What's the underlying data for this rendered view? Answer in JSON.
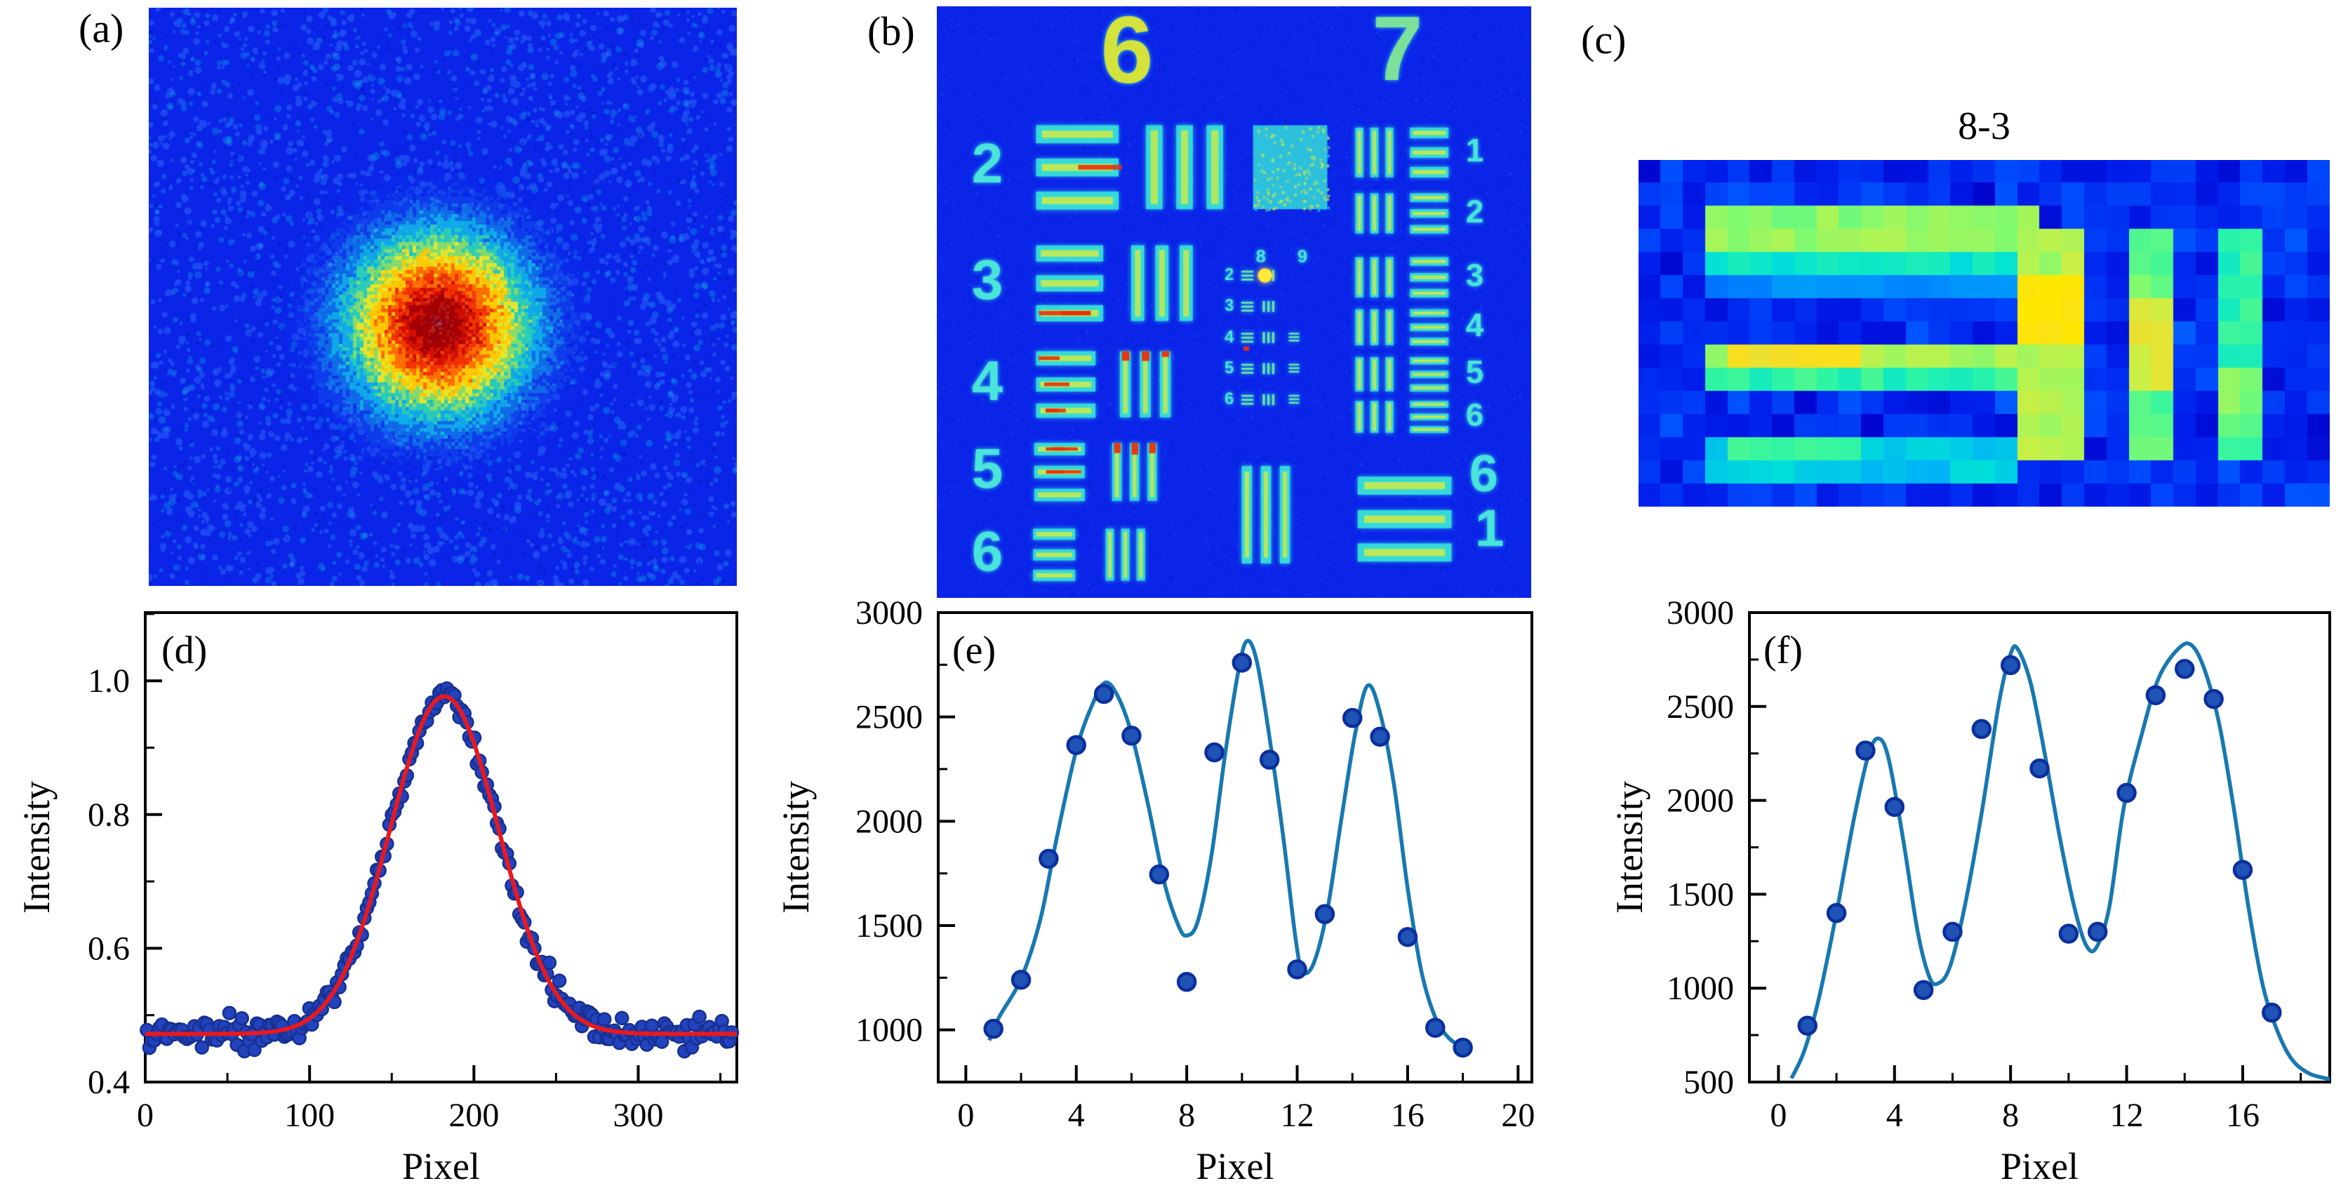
{
  "panels": {
    "a": {
      "label": "(a)"
    },
    "b": {
      "label": "(b)"
    },
    "c": {
      "label": "(c)",
      "title": "8-3"
    },
    "d": {
      "label": "(d)"
    },
    "e": {
      "label": "(e)"
    },
    "f": {
      "label": "(f)"
    }
  },
  "usaf_target": {
    "top_numbers": [
      "6",
      "7"
    ],
    "left_group_labels": [
      "2",
      "3",
      "4",
      "5",
      "6"
    ],
    "right_element_labels": [
      "1",
      "2",
      "3",
      "4",
      "5",
      "6"
    ],
    "bottom_right_labels": [
      "6",
      "1"
    ],
    "mini_cluster_top_numbers": [
      "8",
      "9"
    ],
    "mini_cluster_side_numbers": [
      "2",
      "3",
      "4",
      "5",
      "6"
    ]
  },
  "colors": {
    "figure_background": "#ffffff",
    "heat_background": "#0a24e8",
    "speckle_light": "#1e4af2",
    "speckle_sky": "#0d84e8",
    "speckle_cyan": "#14c2ea",
    "speckle_dark": "#0313a8",
    "bar_edge_cyan": "#35dcd8",
    "bar_core_yellow": "#c8e94c",
    "bar_hot_red": "#e83010",
    "numeral_cyan": "#4ae4da",
    "numeral_yellow": "#d4e23c",
    "numeral_green": "#7ce09a",
    "scatter_fill_d": "#2342bd",
    "scatter_edge_d": "#16308f",
    "scatter_fill": "#1f53b5",
    "scatter_edge": "#0b2f9e",
    "fit_line_red": "#e8191e",
    "curve_blue": "#1878b0",
    "axis_color": "#000000"
  },
  "chart_data": [
    {
      "id": "d",
      "type": "scatter",
      "panel_label": "(d)",
      "title": "",
      "xlabel": "Pixel",
      "ylabel": "Intensity",
      "xlim": [
        0,
        360
      ],
      "ylim": [
        0.4,
        1.102
      ],
      "xticks": [
        0,
        100,
        200,
        300
      ],
      "yticks": [
        0.4,
        0.6,
        0.8,
        1.0
      ],
      "x_minor_step": 50,
      "y_minor_step": 0.1,
      "ytick_decimals": 1,
      "n_points": 235,
      "noise_sigma": 0.009,
      "fit": {
        "type": "gaussian",
        "baseline": 0.472,
        "amplitude": 0.505,
        "center": 182,
        "sigma": 33
      }
    },
    {
      "id": "e",
      "type": "scatter",
      "panel_label": "(e)",
      "title": "",
      "xlabel": "Pixel",
      "ylabel": "Intensity",
      "xlim": [
        -1,
        20.5
      ],
      "ylim": [
        750,
        3000
      ],
      "xticks": [
        0,
        4,
        8,
        12,
        16,
        20
      ],
      "yticks": [
        1000,
        1500,
        2000,
        2500,
        3000
      ],
      "x_minor_step": 2,
      "y_minor_step": 250,
      "ytick_decimals": 0,
      "points": [
        [
          1,
          1005
        ],
        [
          2,
          1240
        ],
        [
          3,
          1820
        ],
        [
          4,
          2365
        ],
        [
          5,
          2610
        ],
        [
          6,
          2410
        ],
        [
          7,
          1745
        ],
        [
          8,
          1230
        ],
        [
          9,
          2330
        ],
        [
          10,
          2760
        ],
        [
          11,
          2295
        ],
        [
          12,
          1290
        ],
        [
          13,
          1555
        ],
        [
          14,
          2495
        ],
        [
          15,
          2405
        ],
        [
          16,
          1445
        ],
        [
          17,
          1010
        ],
        [
          18,
          915
        ]
      ],
      "curve": [
        [
          0.85,
          950
        ],
        [
          1.2,
          1060
        ],
        [
          2,
          1245
        ],
        [
          2.7,
          1530
        ],
        [
          3.3,
          1925
        ],
        [
          4,
          2340
        ],
        [
          4.6,
          2565
        ],
        [
          5.05,
          2665
        ],
        [
          5.5,
          2600
        ],
        [
          6,
          2420
        ],
        [
          6.6,
          2080
        ],
        [
          7.2,
          1700
        ],
        [
          7.7,
          1500
        ],
        [
          8.0,
          1452
        ],
        [
          8.4,
          1520
        ],
        [
          8.9,
          1840
        ],
        [
          9.4,
          2330
        ],
        [
          9.9,
          2740
        ],
        [
          10.2,
          2865
        ],
        [
          10.55,
          2760
        ],
        [
          11.0,
          2400
        ],
        [
          11.5,
          1920
        ],
        [
          11.95,
          1430
        ],
        [
          12.2,
          1280
        ],
        [
          12.6,
          1320
        ],
        [
          13.1,
          1580
        ],
        [
          13.6,
          2010
        ],
        [
          14.1,
          2420
        ],
        [
          14.55,
          2650
        ],
        [
          15.0,
          2520
        ],
        [
          15.5,
          2180
        ],
        [
          16.0,
          1680
        ],
        [
          16.5,
          1280
        ],
        [
          17.0,
          1060
        ],
        [
          17.5,
          960
        ],
        [
          18.05,
          912
        ]
      ]
    },
    {
      "id": "f",
      "type": "scatter",
      "panel_label": "(f)",
      "title": "",
      "xlabel": "Pixel",
      "ylabel": "Intensity",
      "xlim": [
        -1,
        19
      ],
      "ylim": [
        500,
        3000
      ],
      "xticks": [
        0,
        4,
        8,
        12,
        16
      ],
      "yticks": [
        500,
        1000,
        1500,
        2000,
        2500,
        3000
      ],
      "x_minor_step": 2,
      "y_minor_step": 250,
      "ytick_decimals": 0,
      "points": [
        [
          1,
          800
        ],
        [
          2,
          1400
        ],
        [
          3,
          2265
        ],
        [
          4,
          1965
        ],
        [
          5,
          990
        ],
        [
          6,
          1300
        ],
        [
          7,
          2380
        ],
        [
          8,
          2720
        ],
        [
          9,
          2170
        ],
        [
          10,
          1290
        ],
        [
          11,
          1300
        ],
        [
          12,
          2040
        ],
        [
          13,
          2560
        ],
        [
          14,
          2700
        ],
        [
          15,
          2540
        ],
        [
          16,
          1630
        ],
        [
          17,
          870
        ]
      ],
      "curve": [
        [
          0.45,
          520
        ],
        [
          0.9,
          670
        ],
        [
          1.4,
          950
        ],
        [
          2.0,
          1400
        ],
        [
          2.6,
          1900
        ],
        [
          3.1,
          2240
        ],
        [
          3.45,
          2330
        ],
        [
          3.8,
          2220
        ],
        [
          4.3,
          1790
        ],
        [
          4.8,
          1300
        ],
        [
          5.2,
          1060
        ],
        [
          5.5,
          1025
        ],
        [
          5.9,
          1110
        ],
        [
          6.4,
          1420
        ],
        [
          7.0,
          1930
        ],
        [
          7.6,
          2520
        ],
        [
          8.0,
          2780
        ],
        [
          8.25,
          2805
        ],
        [
          8.7,
          2620
        ],
        [
          9.2,
          2230
        ],
        [
          9.7,
          1800
        ],
        [
          10.2,
          1430
        ],
        [
          10.6,
          1230
        ],
        [
          10.95,
          1215
        ],
        [
          11.4,
          1430
        ],
        [
          11.9,
          1960
        ],
        [
          12.5,
          2340
        ],
        [
          13.1,
          2650
        ],
        [
          13.8,
          2810
        ],
        [
          14.25,
          2825
        ],
        [
          14.7,
          2690
        ],
        [
          15.2,
          2400
        ],
        [
          15.7,
          1950
        ],
        [
          16.2,
          1430
        ],
        [
          16.7,
          1010
        ],
        [
          17.2,
          770
        ],
        [
          17.7,
          620
        ],
        [
          18.3,
          545
        ],
        [
          19.0,
          515
        ]
      ]
    },
    {
      "id": "c",
      "type": "heatmap",
      "title": "8-3",
      "cols": 31,
      "rows": 15,
      "background": 0.1,
      "bars": [
        {
          "c0": 3,
          "c1": 17,
          "r0": 2,
          "r1": 3,
          "v": 0.68
        },
        {
          "c0": 3,
          "c1": 17,
          "r0": 4,
          "r1": 4,
          "v": 0.5
        },
        {
          "c0": 3,
          "c1": 17,
          "r0": 5,
          "r1": 5,
          "v": 0.3
        },
        {
          "c0": 3,
          "c1": 16,
          "r0": 8,
          "r1": 8,
          "v": 0.7
        },
        {
          "c0": 4,
          "c1": 9,
          "r0": 8,
          "r1": 8,
          "v": 0.88
        },
        {
          "c0": 3,
          "c1": 16,
          "r0": 9,
          "r1": 9,
          "v": 0.55
        },
        {
          "c0": 3,
          "c1": 16,
          "r0": 12,
          "r1": 13,
          "v": 0.42
        },
        {
          "c0": 4,
          "c1": 9,
          "r0": 12,
          "r1": 12,
          "v": 0.55
        },
        {
          "c0": 17,
          "c1": 19,
          "r0": 3,
          "r1": 12,
          "v": 0.72
        },
        {
          "c0": 17,
          "c1": 19,
          "r0": 5,
          "r1": 7,
          "v": 0.97
        },
        {
          "c0": 22,
          "c1": 23,
          "r0": 3,
          "r1": 12,
          "v": 0.62
        },
        {
          "c0": 22,
          "c1": 23,
          "r0": 6,
          "r1": 9,
          "v": 0.8
        },
        {
          "c0": 26,
          "c1": 27,
          "r0": 3,
          "r1": 12,
          "v": 0.55
        },
        {
          "c0": 26,
          "c1": 27,
          "r0": 9,
          "r1": 11,
          "v": 0.65
        }
      ]
    }
  ]
}
